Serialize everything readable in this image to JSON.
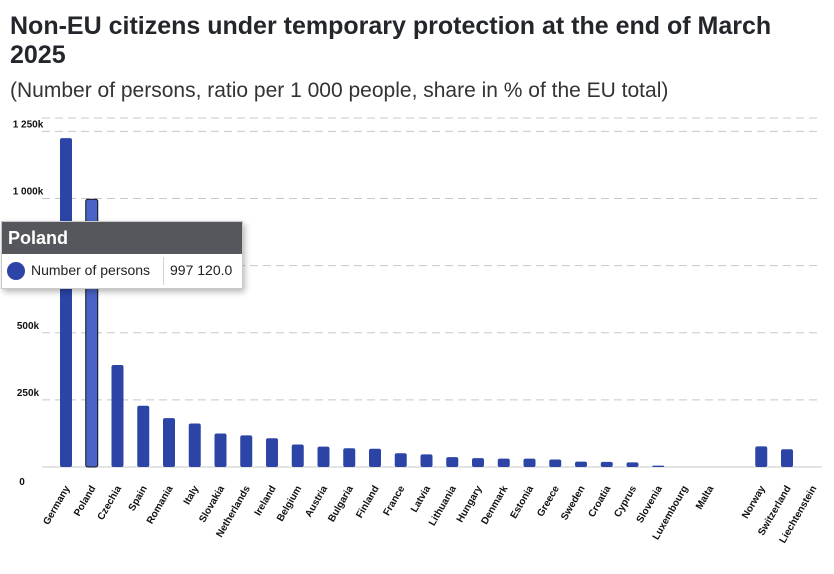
{
  "title": "Non-EU citizens under temporary protection at the end of March 2025",
  "subtitle": "(Number of persons, ratio per 1 000 people, share in % of the EU total)",
  "colors": {
    "bar": "#2b44a6",
    "highlight_bar": "#4a63c6",
    "grid": "#c8c8c8",
    "tooltip_header": "#55575c"
  },
  "tooltip": {
    "title": "Poland",
    "series_label": "Number of persons",
    "value": "997 120.0",
    "icon": "circle-marker-icon"
  },
  "chart_data": {
    "type": "bar",
    "categories": [
      "Germany",
      "Poland",
      "Czechia",
      "Spain",
      "Romania",
      "Italy",
      "Slovakia",
      "Netherlands",
      "Ireland",
      "Belgium",
      "Austria",
      "Bulgaria",
      "Finland",
      "France",
      "Latvia",
      "Lithuania",
      "Hungary",
      "Denmark",
      "Estonia",
      "Greece",
      "Sweden",
      "Croatia",
      "Cyprus",
      "Slovenia",
      "Luxembourg",
      "Malta",
      "",
      "Norway",
      "Switzerland",
      "Liechtenstein"
    ],
    "series": [
      {
        "values": [
          1225000,
          997120,
          380000,
          228000,
          182000,
          162000,
          125000,
          118000,
          107000,
          84000,
          76000,
          70000,
          68000,
          51000,
          47000,
          37000,
          33000,
          31000,
          31000,
          28000,
          20000,
          19000,
          17000,
          5000,
          0,
          0,
          null,
          77000,
          66000,
          0
        ]
      }
    ],
    "highlight_category": "Poland",
    "y_tick_values": [
      0,
      250000,
      500000,
      1000000,
      1250000
    ],
    "y_tick_labels": [
      "0",
      "250k",
      "500k",
      "1 000k",
      "1 250k"
    ],
    "ylim": [
      0,
      1250000
    ],
    "grid": true
  }
}
